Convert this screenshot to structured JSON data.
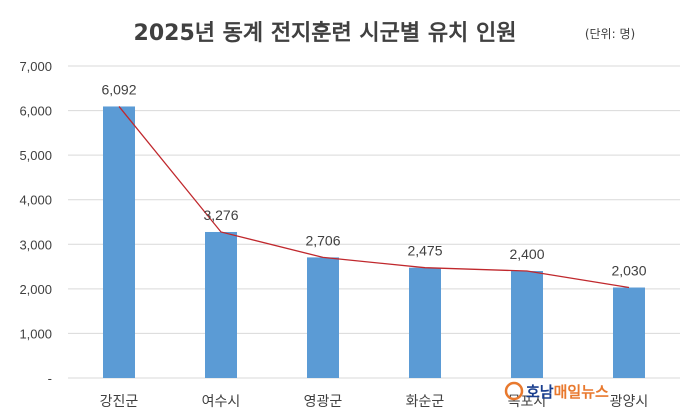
{
  "chart_data": {
    "type": "bar",
    "title": "2025년 동계 전지훈련 시군별 유치 인원",
    "unit_note": "(단위: 명)",
    "categories": [
      "강진군",
      "여수시",
      "영광군",
      "화순군",
      "목포시",
      "광양시"
    ],
    "series": [
      {
        "values": [
          6092,
          3276,
          2706,
          2475,
          2400,
          2030
        ]
      }
    ],
    "data_labels": [
      "6,092",
      "3,276",
      "2,706",
      "2,475",
      "2,400",
      "2,030"
    ],
    "overlay_line": true,
    "ylim": [
      0,
      7000
    ],
    "yticks": [
      0,
      1000,
      2000,
      3000,
      4000,
      5000,
      6000,
      7000
    ],
    "ytick_labels": [
      "-",
      "1,000",
      "2,000",
      "3,000",
      "4,000",
      "5,000",
      "6,000",
      "7,000"
    ],
    "grid": true,
    "xlabel": "",
    "ylabel": "",
    "colors": {
      "bar": "#5b9bd5",
      "line": "#c0282d",
      "grid": "#d9d9d9",
      "text": "#404040"
    }
  },
  "watermark": {
    "text_part1": "호남",
    "text_part2": "매일뉴스",
    "colors": {
      "part1": "#1a3f8f",
      "part2": "#e8792e"
    }
  }
}
